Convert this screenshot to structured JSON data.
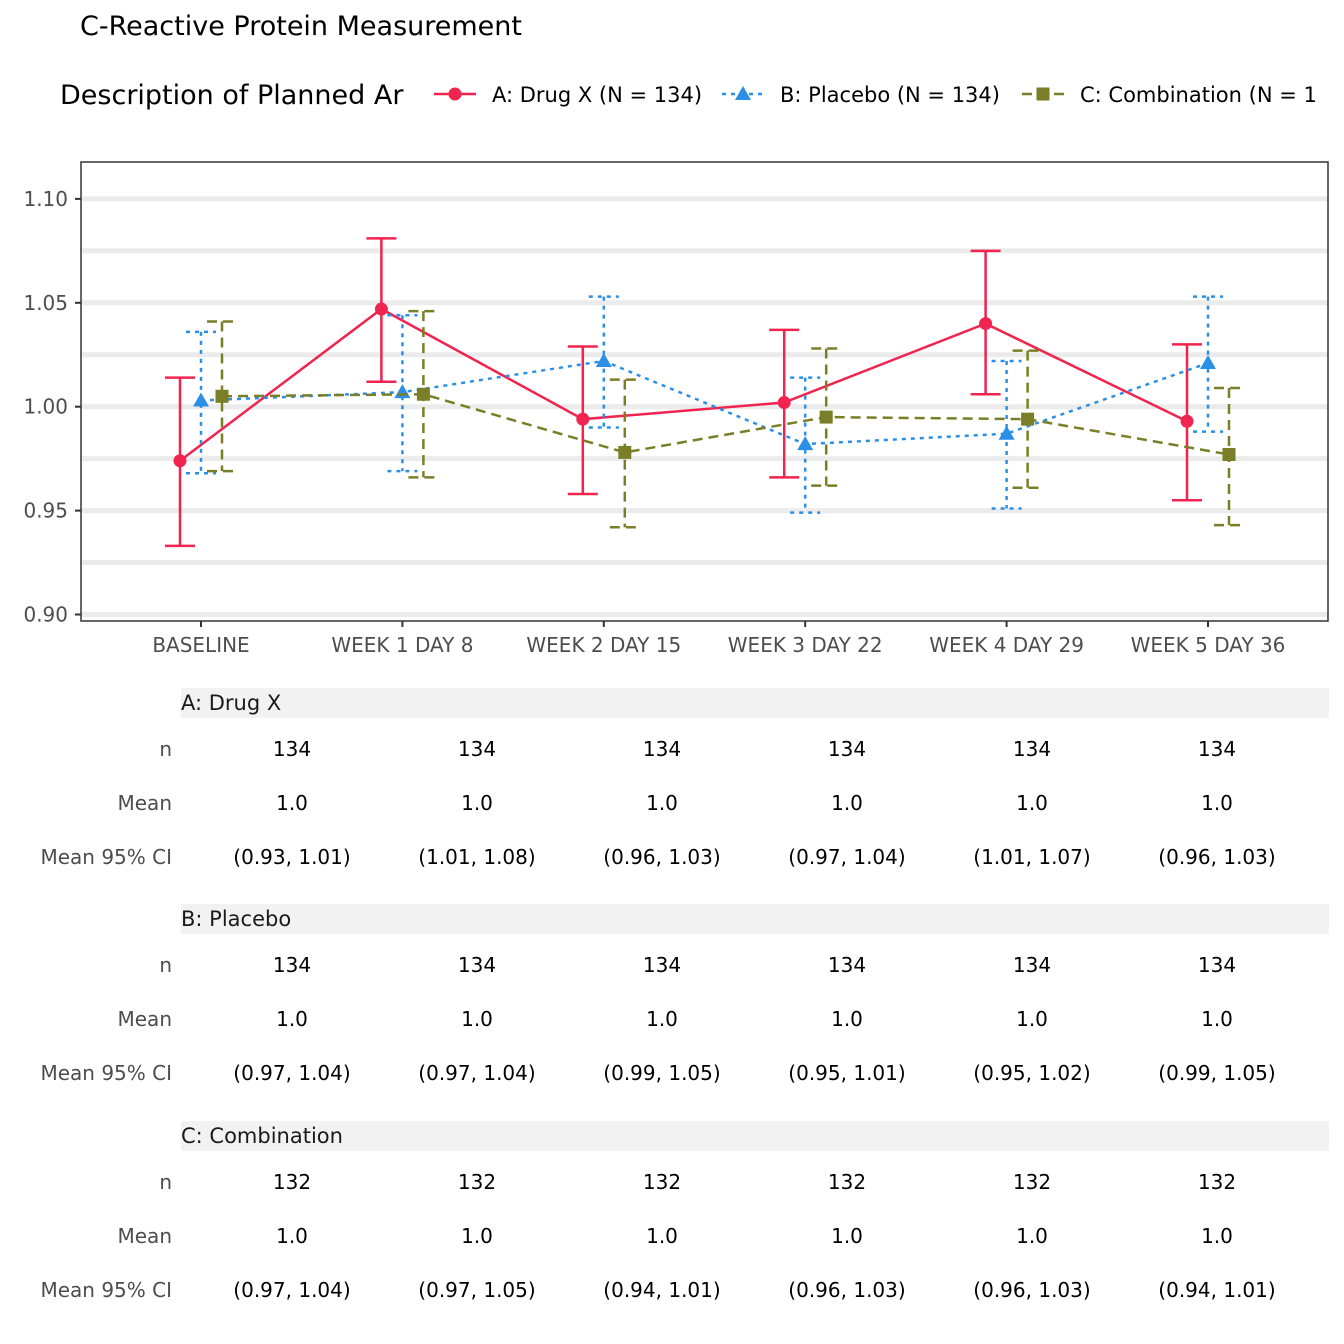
{
  "chart_data": {
    "type": "line",
    "title": "C-Reactive Protein Measurement",
    "legend_title": "Description of Planned Ar",
    "legend_position": "top",
    "categories": [
      "BASELINE",
      "WEEK 1 DAY 8",
      "WEEK 2 DAY 15",
      "WEEK 3 DAY 22",
      "WEEK 4 DAY 29",
      "WEEK 5 DAY 36"
    ],
    "ylim": [
      0.9,
      1.11
    ],
    "yticks": [
      "0.90",
      "0.95",
      "1.00",
      "1.05",
      "1.10"
    ],
    "grid": true,
    "series": [
      {
        "name": "A: Drug X (N = 134)",
        "color": "#f0244f",
        "marker": "circle",
        "line": "solid",
        "mean": [
          0.974,
          1.047,
          0.994,
          1.002,
          1.04,
          0.993
        ],
        "lower": [
          0.933,
          1.012,
          0.958,
          0.966,
          1.006,
          0.955
        ],
        "upper": [
          1.014,
          1.081,
          1.029,
          1.037,
          1.075,
          1.03
        ]
      },
      {
        "name": "B: Placebo (N = 134)",
        "color": "#2b8fe8",
        "marker": "triangle",
        "line": "dotted",
        "mean": [
          1.003,
          1.007,
          1.022,
          0.982,
          0.987,
          1.021
        ],
        "lower": [
          0.968,
          0.969,
          0.99,
          0.949,
          0.951,
          0.988
        ],
        "upper": [
          1.036,
          1.044,
          1.053,
          1.014,
          1.022,
          1.053
        ]
      },
      {
        "name": "C: Combination (N = 1",
        "color": "#7a7f27",
        "marker": "square",
        "line": "dashed",
        "mean": [
          1.005,
          1.006,
          0.978,
          0.995,
          0.994,
          0.977
        ],
        "lower": [
          0.969,
          0.966,
          0.942,
          0.962,
          0.961,
          0.943
        ],
        "upper": [
          1.041,
          1.046,
          1.013,
          1.028,
          1.027,
          1.009
        ]
      }
    ]
  },
  "table": {
    "row_labels": [
      "n",
      "Mean",
      "Mean 95% CI"
    ],
    "groups": [
      {
        "label": "A: Drug X",
        "n": [
          "134",
          "134",
          "134",
          "134",
          "134",
          "134"
        ],
        "mean": [
          "1.0",
          "1.0",
          "1.0",
          "1.0",
          "1.0",
          "1.0"
        ],
        "ci": [
          "(0.93, 1.01)",
          "(1.01, 1.08)",
          "(0.96, 1.03)",
          "(0.97, 1.04)",
          "(1.01, 1.07)",
          "(0.96, 1.03)"
        ]
      },
      {
        "label": "B: Placebo",
        "n": [
          "134",
          "134",
          "134",
          "134",
          "134",
          "134"
        ],
        "mean": [
          "1.0",
          "1.0",
          "1.0",
          "1.0",
          "1.0",
          "1.0"
        ],
        "ci": [
          "(0.97, 1.04)",
          "(0.97, 1.04)",
          "(0.99, 1.05)",
          "(0.95, 1.01)",
          "(0.95, 1.02)",
          "(0.99, 1.05)"
        ]
      },
      {
        "label": "C: Combination",
        "n": [
          "132",
          "132",
          "132",
          "132",
          "132",
          "132"
        ],
        "mean": [
          "1.0",
          "1.0",
          "1.0",
          "1.0",
          "1.0",
          "1.0"
        ],
        "ci": [
          "(0.97, 1.04)",
          "(0.97, 1.05)",
          "(0.94, 1.01)",
          "(0.96, 1.03)",
          "(0.96, 1.03)",
          "(0.94, 1.01)"
        ]
      }
    ]
  }
}
